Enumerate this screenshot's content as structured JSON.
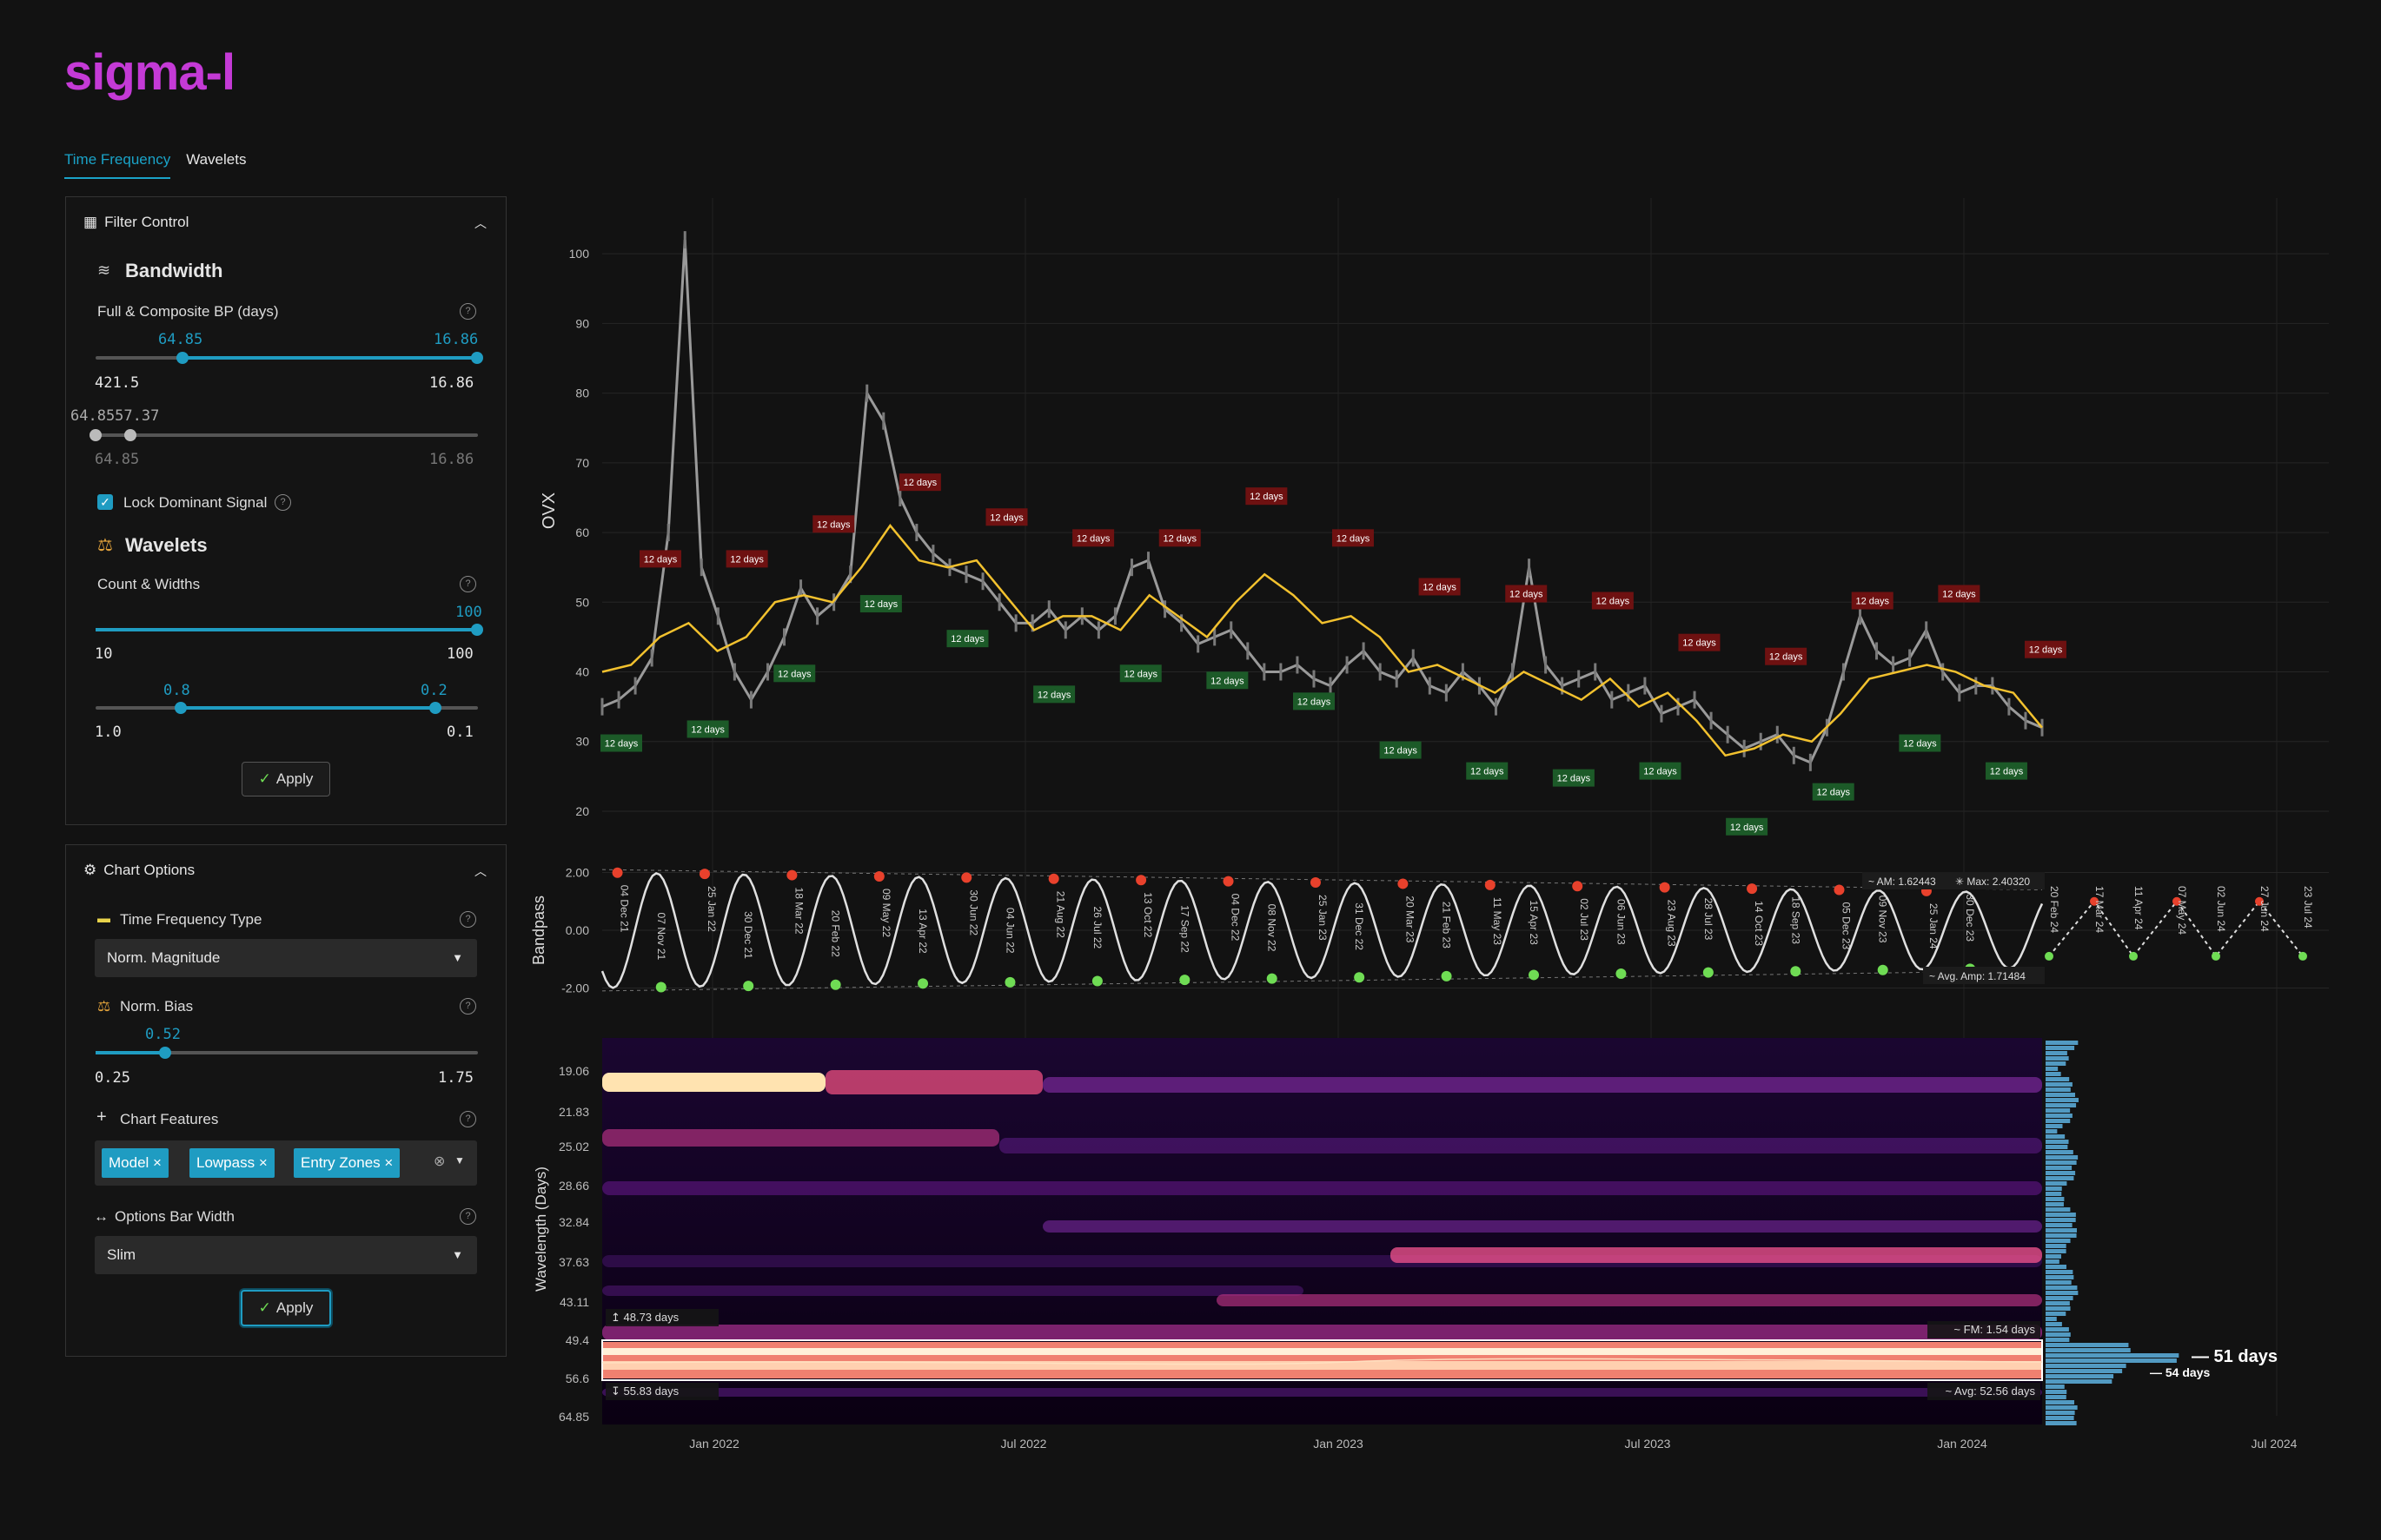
{
  "app": {
    "logo": "sigma-l"
  },
  "tabs": [
    {
      "label": "Time Frequency",
      "active": true
    },
    {
      "label": "Wavelets",
      "active": false
    }
  ],
  "filter_control": {
    "title": "Filter Control",
    "bandwidth": {
      "title": "Bandwidth",
      "bp_label": "Full & Composite BP (days)",
      "slider1_value_left": "64.85",
      "slider1_value_right": "16.86",
      "slider1_min": "421.5",
      "slider1_max": "16.86",
      "slider2_values": "64.8557.37",
      "slider2_min": "64.85",
      "slider2_max": "16.86"
    },
    "lock_dominant_label": "Lock Dominant Signal",
    "lock_dominant_checked": true,
    "wavelets": {
      "title": "Wavelets",
      "count_label": "Count & Widths",
      "count_value": "100",
      "count_min": "10",
      "count_max": "100",
      "width_value_left": "0.8",
      "width_value_right": "0.2",
      "width_min": "1.0",
      "width_max": "0.1"
    },
    "apply_label": "Apply"
  },
  "chart_options": {
    "title": "Chart Options",
    "tf_type_label": "Time Frequency Type",
    "tf_type_value": "Norm. Magnitude",
    "norm_bias_label": "Norm. Bias",
    "norm_bias_value": "0.52",
    "norm_bias_min": "0.25",
    "norm_bias_max": "1.75",
    "chart_features_label": "Chart Features",
    "chart_features": [
      "Model",
      "Lowpass",
      "Entry Zones"
    ],
    "bar_width_label": "Options Bar Width",
    "bar_width_value": "Slim",
    "apply_label": "Apply"
  },
  "colors": {
    "accent": "#1f9cc2",
    "logo": "#c43ad6",
    "lowpass": "#f2c12e",
    "peak": "#e8412c",
    "trough": "#6fdc54",
    "red_label": "#6e1111",
    "green_label": "#1c5a28"
  },
  "icons": [
    "grid-icon",
    "chevron-up-icon",
    "waves-icon",
    "help-icon",
    "scales-icon",
    "gear-icon",
    "plus-icon",
    "arrows-horizontal-icon",
    "check-icon",
    "clear-icon",
    "caret-down-icon"
  ],
  "chart_data": [
    {
      "type": "line",
      "ylabel": "OVX",
      "yticks": [
        20,
        30,
        40,
        50,
        60,
        70,
        80,
        90,
        100
      ],
      "ylim": [
        18,
        108
      ],
      "x_ticks": [
        "Jan 2022",
        "Jul 2022",
        "Jan 2023",
        "Jul 2023",
        "Jan 2024",
        "Jul 2024"
      ],
      "lowpass": [
        40,
        41,
        45,
        47,
        43,
        45,
        50,
        51,
        50,
        55,
        61,
        56,
        55,
        56,
        51,
        46,
        48,
        48,
        46,
        51,
        48,
        45,
        50,
        54,
        51,
        47,
        48,
        45,
        40,
        41,
        39,
        37,
        40,
        38,
        36,
        39,
        35,
        37,
        33,
        28,
        29,
        31,
        30,
        34,
        39,
        40,
        41,
        40,
        38,
        37,
        32
      ],
      "price": [
        35,
        36,
        38,
        42,
        60,
        102,
        55,
        48,
        40,
        36,
        40,
        45,
        52,
        48,
        50,
        54,
        80,
        76,
        65,
        60,
        57,
        55,
        54,
        53,
        50,
        47,
        47,
        49,
        46,
        48,
        46,
        48,
        55,
        56,
        49,
        47,
        44,
        45,
        46,
        43,
        40,
        40,
        41,
        39,
        38,
        41,
        43,
        40,
        39,
        42,
        38,
        37,
        40,
        38,
        35,
        40,
        55,
        41,
        38,
        39,
        40,
        36,
        37,
        38,
        34,
        35,
        36,
        33,
        31,
        29,
        30,
        31,
        28,
        27,
        32,
        40,
        48,
        43,
        41,
        42,
        46,
        40,
        37,
        38,
        38,
        35,
        33,
        32
      ],
      "peak_labels": [
        "12 days",
        "12 days",
        "12 days",
        "12 days",
        "12 days",
        "12 days",
        "12 days",
        "12 days",
        "12 days",
        "12 days",
        "12 days",
        "12 days",
        "12 days",
        "12 days",
        "12 days",
        "12 days",
        "12 days"
      ],
      "trough_labels": [
        "12 days",
        "12 days",
        "12 days",
        "12 days",
        "12 days",
        "12 days",
        "12 days",
        "12 days",
        "12 days",
        "12 days",
        "12 days",
        "12 days",
        "12 days",
        "12 days",
        "12 days",
        "12 days",
        "12 days"
      ]
    },
    {
      "type": "line",
      "ylabel": "Bandpass",
      "yticks": [
        "2.00",
        "0.00",
        "-2.00"
      ],
      "amplitude_max": 2.0,
      "cycles": 16.5,
      "annotations": {
        "am": "AM: 1.62443",
        "max": "Max: 2.40320",
        "avg_amp": "Avg. Amp: 1.71484"
      },
      "peak_dates": [
        "04 Dec 21",
        "25 Jan 22",
        "18 Mar 22",
        "09 May 22",
        "30 Jun 22",
        "21 Aug 22",
        "13 Oct 22",
        "04 Dec 22",
        "25 Jan 23",
        "20 Mar 23",
        "11 May 23",
        "02 Jul 23",
        "23 Aug 23",
        "14 Oct 23",
        "05 Dec 23",
        "25 Jan 24"
      ],
      "trough_dates": [
        "07 Nov 21",
        "30 Dec 21",
        "20 Feb 22",
        "13 Apr 22",
        "04 Jun 22",
        "26 Jul 22",
        "17 Sep 22",
        "08 Nov 22",
        "31 Dec 22",
        "21 Feb 23",
        "15 Apr 23",
        "06 Jun 23",
        "28 Jul 23",
        "18 Sep 23",
        "09 Nov 23",
        "30 Dec 23"
      ],
      "future_dates": [
        "20 Feb 24",
        "17 Mar 24",
        "11 Apr 24",
        "07 May 24",
        "02 Jun 24",
        "27 Jun 24",
        "23 Jul 24"
      ]
    },
    {
      "type": "heatmap",
      "ylabel": "Wavelength (Days)",
      "yticks": [
        "19.06",
        "21.83",
        "25.02",
        "28.66",
        "32.84",
        "37.63",
        "43.11",
        "49.4",
        "56.6",
        "64.85"
      ],
      "annotations": {
        "upper": "48.73 days",
        "lower": "55.83 days",
        "fm": "FM: 1.54 days",
        "avg": "Avg: 52.56 days",
        "peak_main": "51 days",
        "peak_secondary": "54 days"
      }
    }
  ]
}
